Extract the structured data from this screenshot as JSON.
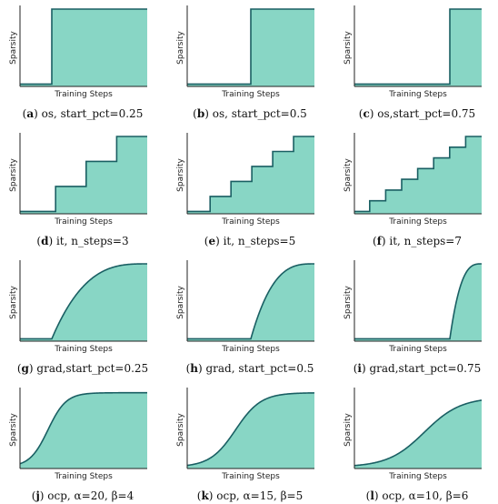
{
  "colors": {
    "fill": "#88d6c5",
    "line": "#1a5f63",
    "axis": "#222222"
  },
  "axis": {
    "xlabel": "Training Steps",
    "ylabel": "Sparsity"
  },
  "chart_data": [
    {
      "type": "area",
      "schedule": "os",
      "start_pct": 0.25,
      "caption_letter": "(a)",
      "caption_rest": " os, start_pct=0.25",
      "x_range": [
        0,
        1
      ],
      "y_range": [
        0,
        1
      ]
    },
    {
      "type": "area",
      "schedule": "os",
      "start_pct": 0.5,
      "caption_letter": "(b)",
      "caption_rest": " os, start_pct=0.5",
      "x_range": [
        0,
        1
      ],
      "y_range": [
        0,
        1
      ]
    },
    {
      "type": "area",
      "schedule": "os",
      "start_pct": 0.75,
      "caption_letter": "(c)",
      "caption_rest": " os,start_pct=0.75",
      "x_range": [
        0,
        1
      ],
      "y_range": [
        0,
        1
      ]
    },
    {
      "type": "area",
      "schedule": "it",
      "n_steps": 3,
      "caption_letter": "(d)",
      "caption_rest": " it, n_steps=3",
      "x_range": [
        0,
        1
      ],
      "y_range": [
        0,
        1
      ]
    },
    {
      "type": "area",
      "schedule": "it",
      "n_steps": 5,
      "caption_letter": "(e)",
      "caption_rest": " it, n_steps=5",
      "x_range": [
        0,
        1
      ],
      "y_range": [
        0,
        1
      ]
    },
    {
      "type": "area",
      "schedule": "it",
      "n_steps": 7,
      "caption_letter": "(f)",
      "caption_rest": " it, n_steps=7",
      "x_range": [
        0,
        1
      ],
      "y_range": [
        0,
        1
      ]
    },
    {
      "type": "area",
      "schedule": "grad",
      "start_pct": 0.25,
      "caption_letter": "(g)",
      "caption_rest": " grad,start_pct=0.25",
      "x_range": [
        0,
        1
      ],
      "y_range": [
        0,
        1
      ]
    },
    {
      "type": "area",
      "schedule": "grad",
      "start_pct": 0.5,
      "caption_letter": "(h)",
      "caption_rest": " grad, start_pct=0.5",
      "x_range": [
        0,
        1
      ],
      "y_range": [
        0,
        1
      ]
    },
    {
      "type": "area",
      "schedule": "grad",
      "start_pct": 0.75,
      "caption_letter": "(i)",
      "caption_rest": " grad,start_pct=0.75",
      "x_range": [
        0,
        1
      ],
      "y_range": [
        0,
        1
      ]
    },
    {
      "type": "area",
      "schedule": "ocp",
      "alpha": 20,
      "beta": 4,
      "caption_letter": "(j)",
      "caption_rest": " ocp, α=20, β=4",
      "x_range": [
        0,
        1
      ],
      "y_range": [
        0,
        1
      ]
    },
    {
      "type": "area",
      "schedule": "ocp",
      "alpha": 15,
      "beta": 5,
      "caption_letter": "(k)",
      "caption_rest": " ocp, α=15, β=5",
      "x_range": [
        0,
        1
      ],
      "y_range": [
        0,
        1
      ]
    },
    {
      "type": "area",
      "schedule": "ocp",
      "alpha": 10,
      "beta": 6,
      "caption_letter": "(l)",
      "caption_rest": " ocp, α=10, β=6",
      "x_range": [
        0,
        1
      ],
      "y_range": [
        0,
        1
      ]
    }
  ]
}
